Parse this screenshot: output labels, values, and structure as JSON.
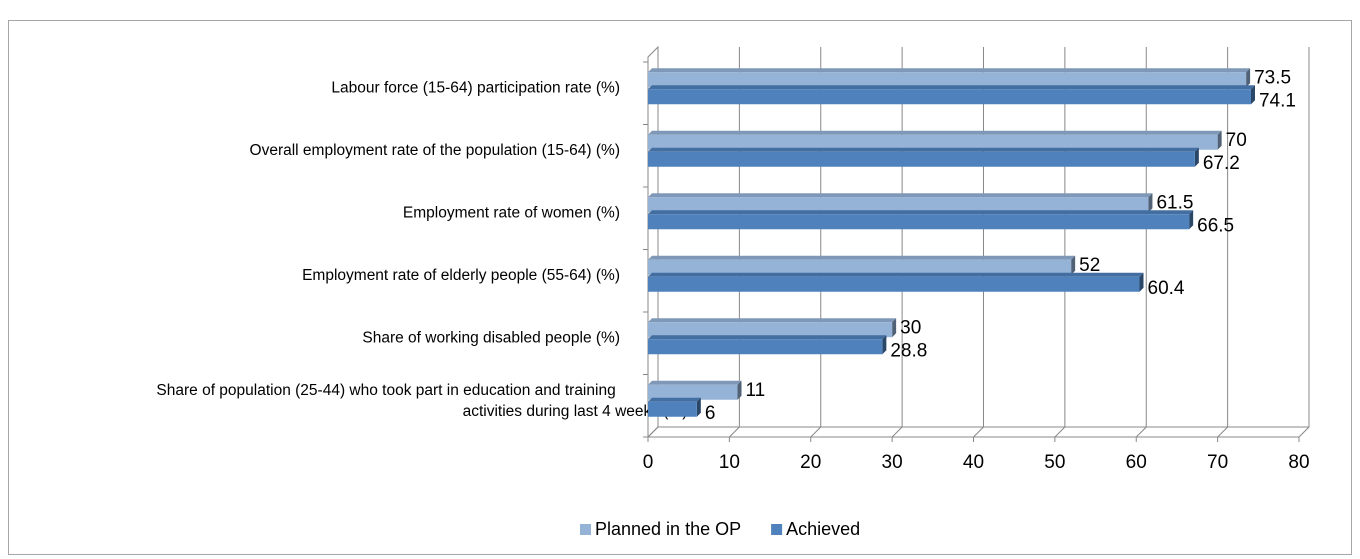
{
  "chart_data": {
    "type": "bar",
    "orientation": "horizontal",
    "categories": [
      "Labour force (15-64) participation rate (%)",
      "Overall employment rate of the population (15-64) (%)",
      "Employment rate of women (%)",
      "Employment rate of elderly people (55-64) (%)",
      "Share of working disabled people (%)",
      "Share of population (25-44) who took part in education and training activities during last 4 weeks (%)"
    ],
    "series": [
      {
        "name": "Planned in the OP",
        "color": "#95b3d7",
        "values": [
          73.5,
          70,
          61.5,
          52,
          30,
          11
        ]
      },
      {
        "name": "Achieved",
        "color": "#4f81bd",
        "values": [
          74.1,
          67.2,
          66.5,
          60.4,
          28.8,
          6
        ]
      }
    ],
    "xlim": [
      0,
      80
    ],
    "xticks": [
      0,
      10,
      20,
      30,
      40,
      50,
      60,
      70,
      80
    ],
    "grid": true,
    "legend": "bottom"
  }
}
